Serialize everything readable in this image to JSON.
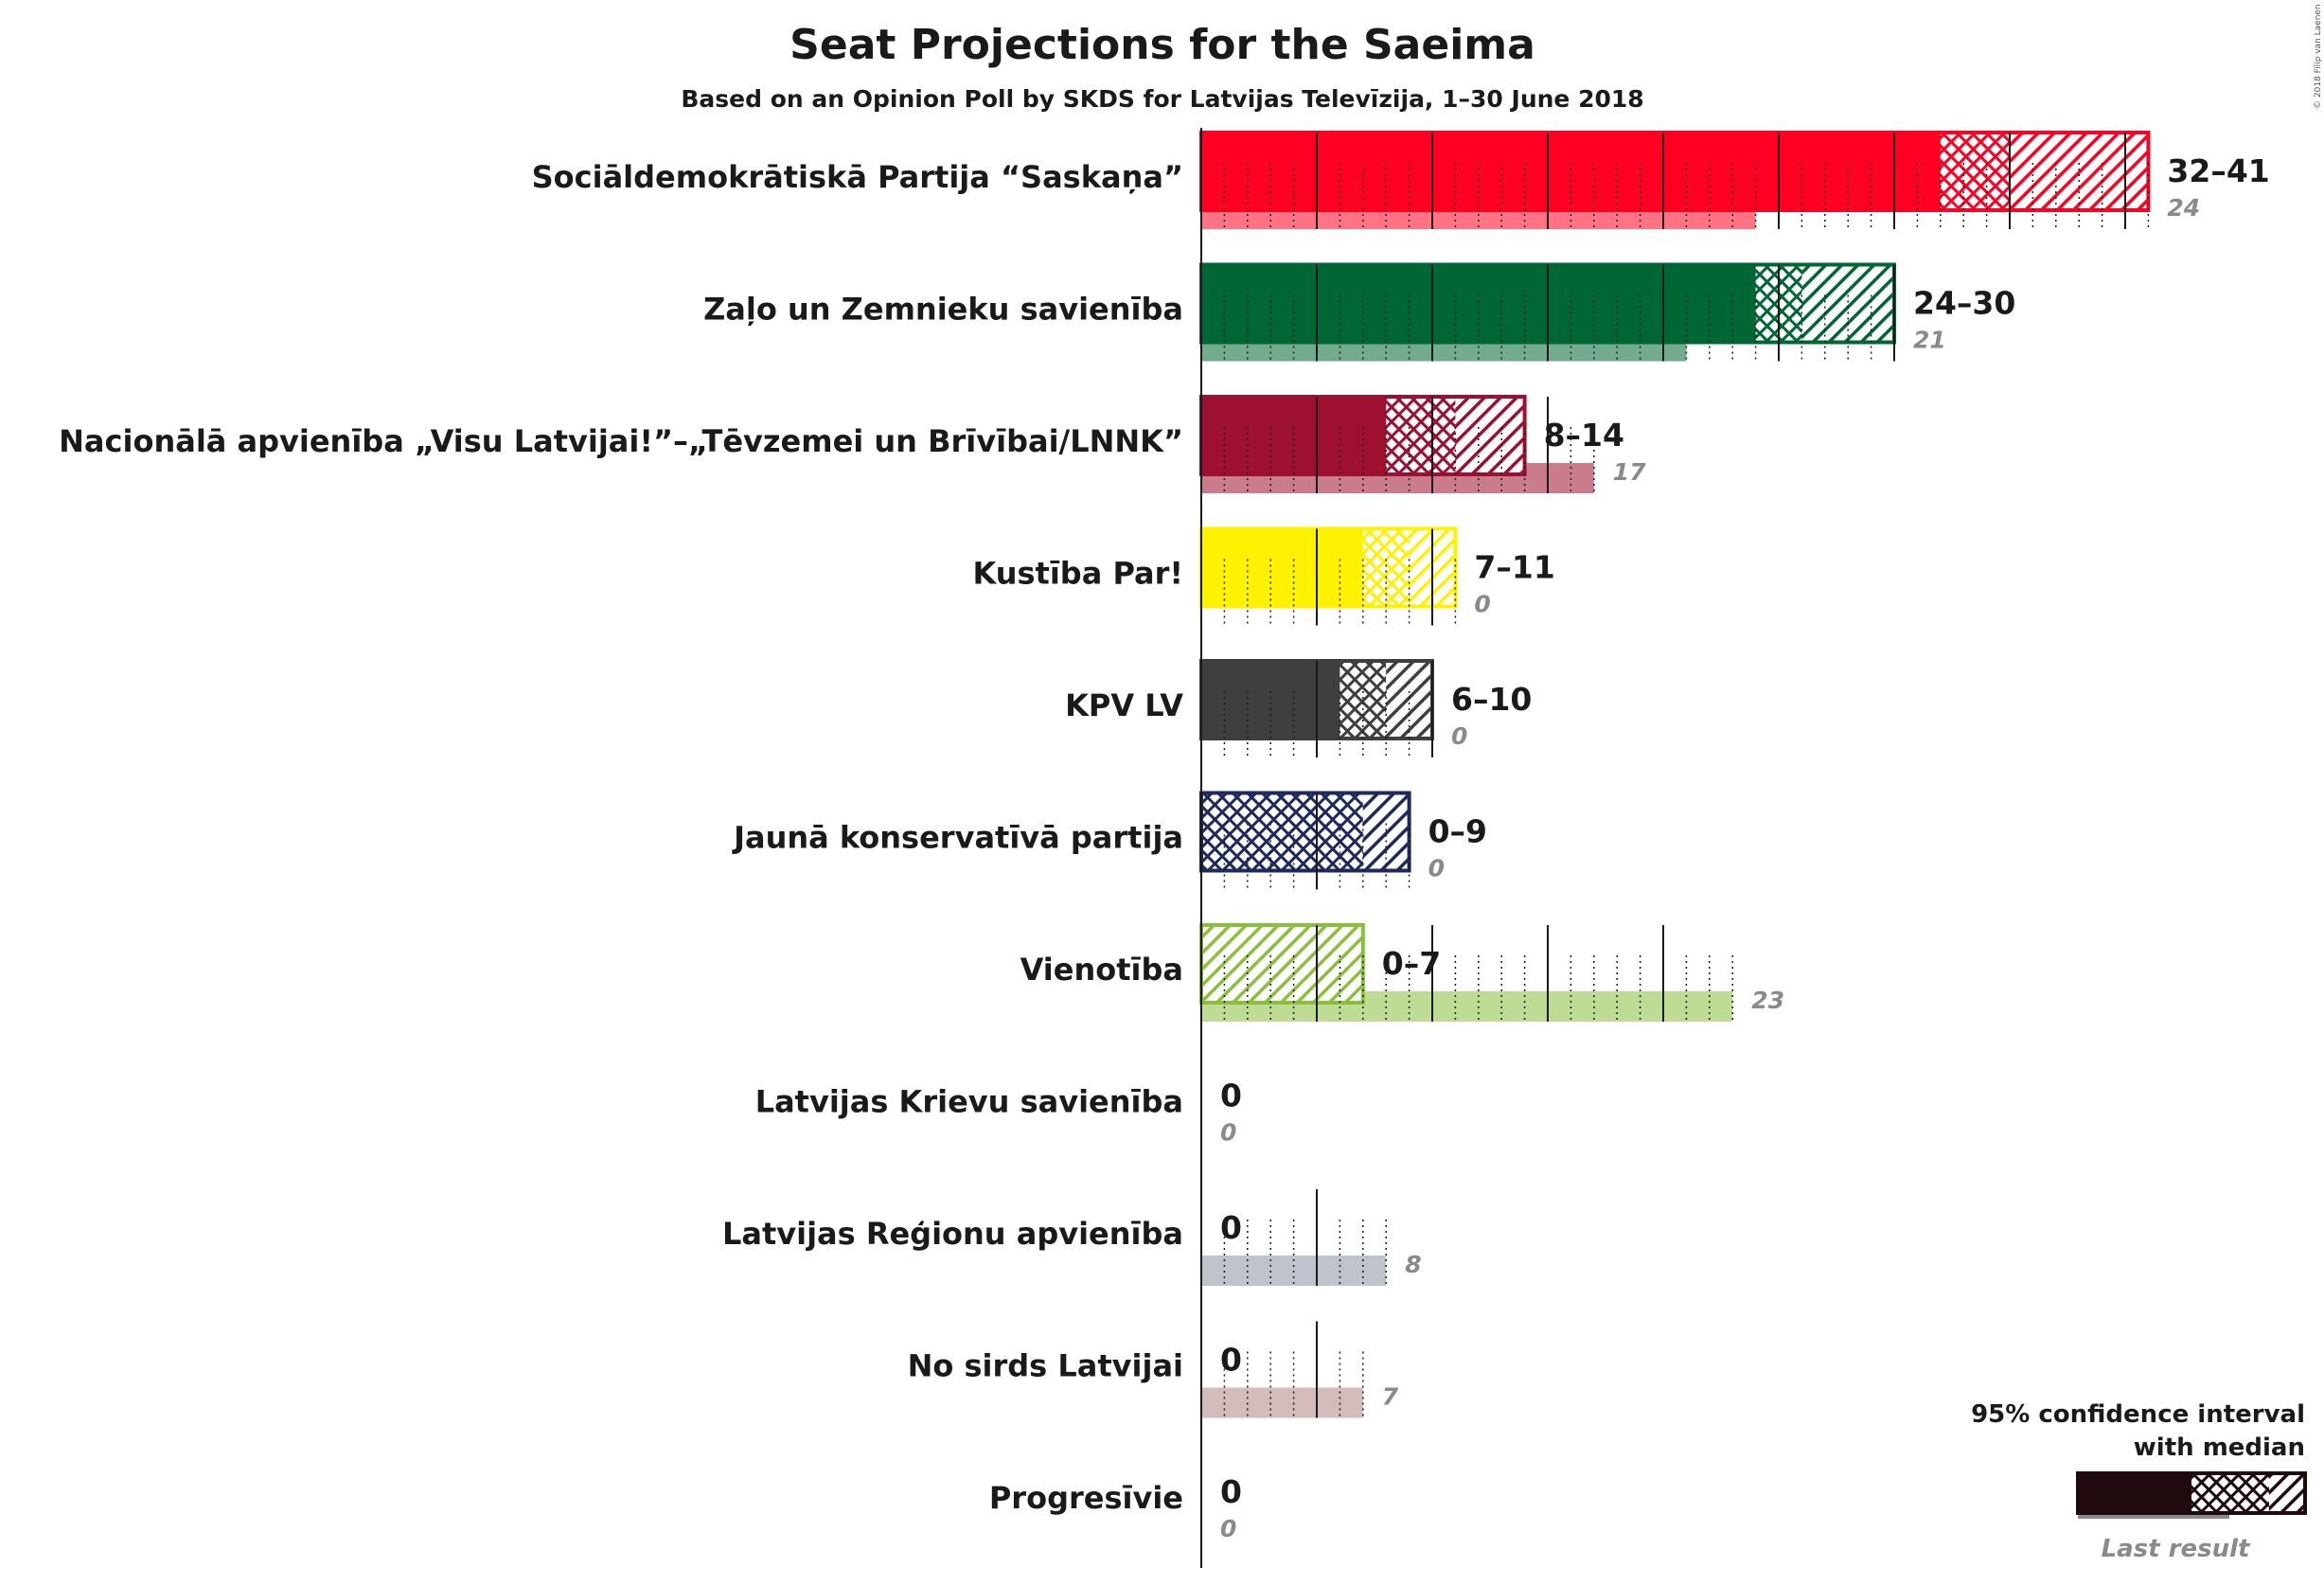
{
  "chart_data": {
    "type": "bar",
    "title": "Seat Projections for the Saeima",
    "subtitle": "Based on an Opinion Poll by SKDS for Latvijas Televīzija, 1–30 June 2018",
    "copyright": "© 2018 Filip van Laenen",
    "legend": {
      "title_line1": "95% confidence interval",
      "title_line2": "with median",
      "last_result": "Last result",
      "placement": "bottom-right"
    },
    "parties": [
      {
        "name": "Sociāldemokrātiskā Partija “Saskaņa”",
        "low": 32,
        "median": 35,
        "high": 41,
        "last": 24,
        "range_label": "32–41",
        "last_label": "24",
        "color": "#ff0022"
      },
      {
        "name": "Zaļo un Zemnieku savienība",
        "low": 24,
        "median": 26,
        "high": 30,
        "last": 21,
        "range_label": "24–30",
        "last_label": "21",
        "color": "#006633"
      },
      {
        "name": "Nacionālā apvienība „Visu Latvijai!”–„Tēvzemei un Brīvībai/LNNK”",
        "low": 8,
        "median": 11,
        "high": 14,
        "last": 17,
        "range_label": "8–14",
        "last_label": "17",
        "color": "#9e1030"
      },
      {
        "name": "Kustība Par!",
        "low": 7,
        "median": 9,
        "high": 11,
        "last": 0,
        "range_label": "7–11",
        "last_label": "0",
        "color": "#fff200"
      },
      {
        "name": "KPV LV",
        "low": 6,
        "median": 8,
        "high": 10,
        "last": 0,
        "range_label": "6–10",
        "last_label": "0",
        "color": "#3f3f3f"
      },
      {
        "name": "Jaunā konservatīvā partija",
        "low": 0,
        "median": 7,
        "high": 9,
        "last": 0,
        "range_label": "0–9",
        "last_label": "0",
        "color": "#1f2a5c"
      },
      {
        "name": "Vienotība",
        "low": 0,
        "median": 0,
        "high": 7,
        "last": 23,
        "range_label": "0–7",
        "last_label": "23",
        "color": "#88c03a"
      },
      {
        "name": "Latvijas Krievu savienība",
        "low": 0,
        "median": 0,
        "high": 0,
        "last": 0,
        "range_label": "0",
        "last_label": "0",
        "color": "#999999"
      },
      {
        "name": "Latvijas Reģionu apvienība",
        "low": 0,
        "median": 0,
        "high": 0,
        "last": 8,
        "range_label": "0",
        "last_label": "8",
        "color": "#8a93a3"
      },
      {
        "name": "No sirds Latvijai",
        "low": 0,
        "median": 0,
        "high": 0,
        "last": 7,
        "range_label": "0",
        "last_label": "7",
        "color": "#b08485"
      },
      {
        "name": "Progresīvie",
        "low": 0,
        "median": 0,
        "high": 0,
        "last": 0,
        "range_label": "0",
        "last_label": "0",
        "color": "#999999"
      }
    ]
  }
}
